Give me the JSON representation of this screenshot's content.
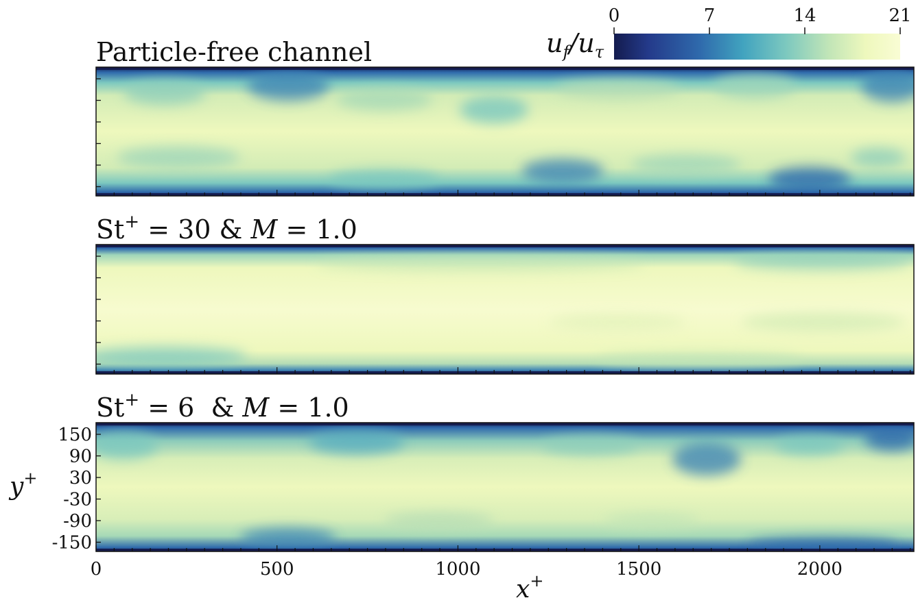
{
  "chart_data": {
    "type": "heatmap",
    "colorbar": {
      "label_main": "u",
      "label_main_sub": "f",
      "label_ref": "u",
      "label_ref_sub": "τ",
      "ticks": [
        "0",
        "7",
        "14",
        "21"
      ],
      "range": [
        0,
        21
      ],
      "colormap": [
        "#141c4f",
        "#243a8a",
        "#2f6aac",
        "#41a3bf",
        "#7cc8bf",
        "#c1e5b7",
        "#eef8bd",
        "#f9fcd4"
      ]
    },
    "panels": [
      {
        "title": "Particle-free channel"
      },
      {
        "title_st": "St",
        "title_sup": "+",
        "title_eq_st": " = 30 & ",
        "title_m": "M",
        "title_eq_m": " = 1.0"
      },
      {
        "title_st": "St",
        "title_sup": "+",
        "title_eq_st": " = 6  & ",
        "title_m": "M",
        "title_eq_m": " = 1.0"
      }
    ],
    "xaxis": {
      "label": "x",
      "label_sup": "+",
      "ticks": [
        "0",
        "500",
        "1000",
        "1500",
        "2000"
      ],
      "range": [
        0,
        2260
      ]
    },
    "yaxis": {
      "label": "y",
      "label_sup": "+",
      "ticks": [
        "150",
        "90",
        "30",
        "-30",
        "-90",
        "-150"
      ]
    }
  }
}
